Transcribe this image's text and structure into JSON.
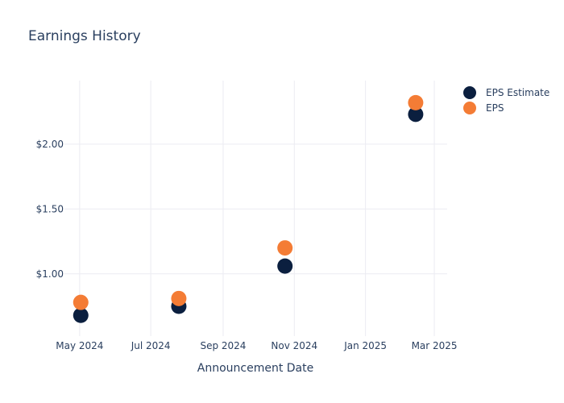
{
  "chart_data": {
    "type": "scatter",
    "title": "Earnings History",
    "xlabel": "Announcement Date",
    "ylabel": "",
    "x_ticks": [
      {
        "date": "2024-05-01",
        "label": "May 2024"
      },
      {
        "date": "2024-07-01",
        "label": "Jul 2024"
      },
      {
        "date": "2024-09-01",
        "label": "Sep 2024"
      },
      {
        "date": "2024-11-01",
        "label": "Nov 2024"
      },
      {
        "date": "2025-01-01",
        "label": "Jan 2025"
      },
      {
        "date": "2025-03-01",
        "label": "Mar 2025"
      }
    ],
    "y_ticks": [
      {
        "value": 1.0,
        "label": "$1.00"
      },
      {
        "value": 1.5,
        "label": "$1.50"
      },
      {
        "value": 2.0,
        "label": "$2.00"
      }
    ],
    "xlim": [
      "2024-04-18",
      "2025-03-12"
    ],
    "ylim": [
      0.52,
      2.49
    ],
    "grid": true,
    "legend_position": "top-right",
    "series": [
      {
        "name": "EPS Estimate",
        "color": "#0b1f3f",
        "points": [
          {
            "x": "2024-05-02",
            "y": 0.68
          },
          {
            "x": "2024-07-25",
            "y": 0.75
          },
          {
            "x": "2024-10-24",
            "y": 1.06
          },
          {
            "x": "2025-02-13",
            "y": 2.23
          }
        ]
      },
      {
        "name": "EPS",
        "color": "#f47c35",
        "points": [
          {
            "x": "2024-05-02",
            "y": 0.78
          },
          {
            "x": "2024-07-25",
            "y": 0.81
          },
          {
            "x": "2024-10-24",
            "y": 1.2
          },
          {
            "x": "2025-02-13",
            "y": 2.32
          }
        ]
      }
    ]
  }
}
